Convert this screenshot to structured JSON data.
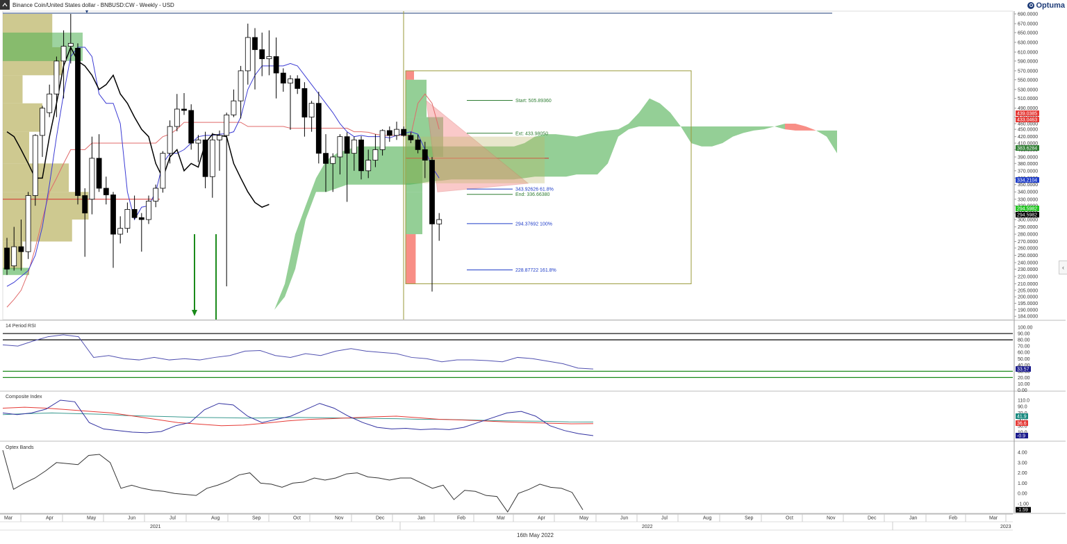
{
  "header": {
    "title": "Binance Coin/United States dollar - BNBUSD:CW - Weekly - USD",
    "logo_text": "Optuma"
  },
  "footer": {
    "date_label": "16th May 2022",
    "years": [
      "2021",
      "2022",
      "2023"
    ],
    "months": [
      "Mar",
      "Apr",
      "May",
      "Jun",
      "Jul",
      "Aug",
      "Sep",
      "Oct",
      "Nov",
      "Dec",
      "Jan",
      "Feb",
      "Mar",
      "Apr",
      "May",
      "Jun",
      "Jul",
      "Aug",
      "Sep",
      "Oct",
      "Nov",
      "Dec",
      "Jan",
      "Feb",
      "Mar"
    ]
  },
  "panels": {
    "rsi_title": "14 Period RSI",
    "composite_title": "Composite Index",
    "optex_title": "Optex Bands"
  },
  "colors": {
    "bull": "#ffffff",
    "bear": "#000000",
    "kumo_bull": "#4caf50",
    "kumo_bear": "#f44336",
    "volume_profile": "#bdb76b",
    "tenkan": "#3b3bd4",
    "kijun": "#e06a6a",
    "lagging": "#000000"
  },
  "fib_labels": {
    "start": "Start: 505.89360",
    "end": "End: 336.66380",
    "ext": "Ext: 433.98050",
    "f618": "343.92626    61.8%",
    "f100": "294.37692    100%",
    "f1618": "228.87722    161.8%"
  },
  "price_axis": {
    "ticks": [
      "690.0000",
      "670.0000",
      "650.0000",
      "630.0000",
      "610.0000",
      "590.0000",
      "570.0000",
      "550.0000",
      "530.0000",
      "510.0000",
      "490.0000",
      "470.0000",
      "460.0000",
      "450.0000",
      "420.0000",
      "410.0000",
      "400.0000",
      "390.0000",
      "380.0000",
      "370.0000",
      "360.0000",
      "350.0000",
      "340.0000",
      "330.0000",
      "320.0000",
      "310.0000",
      "300.0000",
      "290.0000",
      "280.0000",
      "270.0000",
      "260.0000",
      "250.0000",
      "240.0000",
      "230.0000",
      "220.0000",
      "210.0000",
      "205.0000",
      "200.0000",
      "195.0000",
      "190.0000",
      "184.0000"
    ],
    "badges": [
      {
        "value": "439.0385",
        "color": "#e53935"
      },
      {
        "value": "433.0463",
        "color": "#e53935"
      },
      {
        "value": "383.6284",
        "color": "#2e7d32"
      },
      {
        "value": "334.2104",
        "color": "#1e3cc8"
      },
      {
        "value": "294.5982",
        "color": "#22c322"
      },
      {
        "value": "294.5982",
        "color": "#000000"
      }
    ]
  },
  "rsi_axis": {
    "ticks": [
      "100.00",
      "90.00",
      "80.00",
      "70.00",
      "60.00",
      "50.00",
      "40.00",
      "30.00",
      "20.00",
      "10.00",
      "0.00"
    ],
    "badge": "33.57"
  },
  "composite_axis": {
    "ticks": [
      "110.0",
      "90.0",
      "70.0",
      "50.0",
      "30.0",
      "10.0"
    ],
    "badges": [
      {
        "value": "41.9",
        "color": "#1a8a80"
      },
      {
        "value": "36.6",
        "color": "#e53935"
      },
      {
        "value": "-0.9",
        "color": "#1a1a8c"
      }
    ]
  },
  "optex_axis": {
    "ticks": [
      "4.00",
      "3.00",
      "2.00",
      "1.00",
      "0.00",
      "-1.00"
    ],
    "badge": "-1.59"
  },
  "chart_data": {
    "type": "candlestick",
    "timeframe": "Weekly",
    "ylim": [
      184,
      695
    ],
    "candles": [
      {
        "o": 260,
        "h": 275,
        "l": 222,
        "c": 230
      },
      {
        "o": 235,
        "h": 290,
        "l": 228,
        "c": 262
      },
      {
        "o": 262,
        "h": 300,
        "l": 228,
        "c": 255
      },
      {
        "o": 255,
        "h": 340,
        "l": 245,
        "c": 335
      },
      {
        "o": 335,
        "h": 430,
        "l": 320,
        "c": 425
      },
      {
        "o": 425,
        "h": 495,
        "l": 390,
        "c": 490
      },
      {
        "o": 480,
        "h": 540,
        "l": 470,
        "c": 520
      },
      {
        "o": 520,
        "h": 600,
        "l": 470,
        "c": 590
      },
      {
        "o": 590,
        "h": 655,
        "l": 510,
        "c": 622
      },
      {
        "o": 622,
        "h": 690,
        "l": 585,
        "c": 628
      },
      {
        "o": 618,
        "h": 628,
        "l": 322,
        "c": 335
      },
      {
        "o": 335,
        "h": 345,
        "l": 248,
        "c": 310
      },
      {
        "o": 330,
        "h": 420,
        "l": 308,
        "c": 388
      },
      {
        "o": 388,
        "h": 430,
        "l": 340,
        "c": 345
      },
      {
        "o": 345,
        "h": 362,
        "l": 322,
        "c": 336
      },
      {
        "o": 336,
        "h": 340,
        "l": 232,
        "c": 280
      },
      {
        "o": 280,
        "h": 305,
        "l": 267,
        "c": 288
      },
      {
        "o": 288,
        "h": 325,
        "l": 282,
        "c": 315
      },
      {
        "o": 315,
        "h": 335,
        "l": 300,
        "c": 303
      },
      {
        "o": 303,
        "h": 310,
        "l": 255,
        "c": 300
      },
      {
        "o": 300,
        "h": 335,
        "l": 294,
        "c": 327
      },
      {
        "o": 327,
        "h": 350,
        "l": 318,
        "c": 345
      },
      {
        "o": 345,
        "h": 398,
        "l": 339,
        "c": 395
      },
      {
        "o": 395,
        "h": 465,
        "l": 380,
        "c": 455
      },
      {
        "o": 455,
        "h": 520,
        "l": 442,
        "c": 488
      },
      {
        "o": 488,
        "h": 522,
        "l": 475,
        "c": 485
      },
      {
        "o": 485,
        "h": 498,
        "l": 400,
        "c": 410
      },
      {
        "o": 410,
        "h": 427,
        "l": 382,
        "c": 415
      },
      {
        "o": 415,
        "h": 440,
        "l": 345,
        "c": 362
      },
      {
        "o": 362,
        "h": 435,
        "l": 332,
        "c": 415
      },
      {
        "o": 415,
        "h": 445,
        "l": 370,
        "c": 425
      },
      {
        "o": 425,
        "h": 480,
        "l": 208,
        "c": 475
      },
      {
        "o": 475,
        "h": 530,
        "l": 470,
        "c": 505
      },
      {
        "o": 505,
        "h": 580,
        "l": 468,
        "c": 570
      },
      {
        "o": 570,
        "h": 670,
        "l": 540,
        "c": 640
      },
      {
        "o": 640,
        "h": 660,
        "l": 530,
        "c": 615
      },
      {
        "o": 615,
        "h": 650,
        "l": 558,
        "c": 595
      },
      {
        "o": 595,
        "h": 655,
        "l": 560,
        "c": 600
      },
      {
        "o": 600,
        "h": 640,
        "l": 510,
        "c": 565
      },
      {
        "o": 565,
        "h": 575,
        "l": 525,
        "c": 543
      },
      {
        "o": 543,
        "h": 560,
        "l": 448,
        "c": 552
      },
      {
        "o": 552,
        "h": 560,
        "l": 520,
        "c": 532
      },
      {
        "o": 532,
        "h": 545,
        "l": 420,
        "c": 470
      },
      {
        "o": 470,
        "h": 505,
        "l": 440,
        "c": 500
      },
      {
        "o": 500,
        "h": 525,
        "l": 380,
        "c": 395
      },
      {
        "o": 395,
        "h": 430,
        "l": 340,
        "c": 380
      },
      {
        "o": 380,
        "h": 395,
        "l": 340,
        "c": 390
      },
      {
        "o": 390,
        "h": 430,
        "l": 365,
        "c": 420
      },
      {
        "o": 420,
        "h": 438,
        "l": 326,
        "c": 395
      },
      {
        "o": 395,
        "h": 420,
        "l": 370,
        "c": 415
      },
      {
        "o": 415,
        "h": 422,
        "l": 358,
        "c": 370
      },
      {
        "o": 370,
        "h": 400,
        "l": 360,
        "c": 385
      },
      {
        "o": 385,
        "h": 430,
        "l": 375,
        "c": 400
      },
      {
        "o": 400,
        "h": 450,
        "l": 392,
        "c": 445
      },
      {
        "o": 445,
        "h": 455,
        "l": 412,
        "c": 425
      },
      {
        "o": 425,
        "h": 463,
        "l": 415,
        "c": 450
      },
      {
        "o": 450,
        "h": 455,
        "l": 420,
        "c": 425
      },
      {
        "o": 425,
        "h": 438,
        "l": 410,
        "c": 415
      },
      {
        "o": 415,
        "h": 428,
        "l": 395,
        "c": 400
      },
      {
        "o": 400,
        "h": 412,
        "l": 360,
        "c": 385
      },
      {
        "o": 385,
        "h": 390,
        "l": 204,
        "c": 294
      },
      {
        "o": 294,
        "h": 310,
        "l": 271,
        "c": 300
      }
    ],
    "tenkan": [
      208,
      212,
      220,
      228,
      250,
      290,
      350,
      420,
      520,
      600,
      620,
      620,
      600,
      520,
      500,
      500,
      460,
      340,
      300,
      318,
      320,
      340,
      380,
      395,
      395,
      400,
      410,
      420,
      425,
      425,
      430,
      432,
      440,
      470,
      530,
      560,
      580,
      580,
      580,
      580,
      585,
      580,
      560,
      540,
      520,
      500,
      480,
      460,
      440,
      420,
      425,
      420,
      420,
      420,
      418,
      425,
      433,
      440,
      430,
      400,
      375,
      360
    ],
    "kijun": [
      192,
      198,
      205,
      225,
      260,
      300,
      340,
      360,
      380,
      400,
      400,
      400,
      410,
      410,
      410,
      410,
      410,
      410,
      410,
      410,
      410,
      410,
      420,
      430,
      450,
      462,
      462,
      462,
      462,
      462,
      462,
      462,
      462,
      462,
      455,
      455,
      455,
      455,
      455,
      455,
      452,
      452,
      452,
      452,
      452,
      452,
      452,
      452,
      452,
      440,
      440,
      438,
      430,
      425,
      425,
      425,
      425,
      425,
      500,
      520,
      500,
      450
    ],
    "lagging": [
      440,
      420,
      400,
      380,
      360,
      360,
      420,
      500,
      580,
      620,
      590,
      580,
      560,
      530,
      540,
      560,
      520,
      500,
      470,
      450,
      420,
      380,
      360,
      390,
      400,
      370,
      380,
      375,
      410,
      430,
      425,
      420,
      380,
      360,
      340,
      325,
      318,
      322
    ],
    "kumo": {
      "span_a": [
        184,
        184,
        184,
        186,
        188,
        190,
        210,
        280,
        320,
        360,
        385,
        395,
        400,
        405,
        405,
        405,
        405,
        405,
        405,
        405,
        405,
        405,
        405,
        405,
        405,
        405,
        405,
        405,
        405,
        410,
        420,
        430,
        430,
        425,
        420,
        430,
        440,
        445,
        450,
        460,
        480,
        510,
        500,
        480,
        455,
        455,
        455,
        455,
        455,
        455,
        455,
        455,
        455,
        455,
        450,
        445,
        445,
        445,
        445,
        445
      ],
      "span_b": [
        184,
        184,
        184,
        186,
        188,
        190,
        200,
        230,
        300,
        340,
        340,
        345,
        350,
        350,
        350,
        350,
        350,
        350,
        350,
        352,
        355,
        356,
        358,
        358,
        358,
        358,
        358,
        358,
        358,
        360,
        362,
        362,
        362,
        362,
        365,
        365,
        365,
        380,
        420,
        450,
        455,
        455,
        455,
        455,
        455,
        410,
        405,
        405,
        410,
        420,
        435,
        445,
        450,
        455,
        460,
        460,
        455,
        445,
        420,
        395
      ]
    },
    "rsi": [
      72,
      70,
      78,
      85,
      88,
      85,
      52,
      55,
      50,
      48,
      52,
      48,
      50,
      48,
      52,
      55,
      62,
      63,
      55,
      52,
      58,
      55,
      62,
      66,
      62,
      60,
      58,
      52,
      50,
      45,
      48,
      48,
      47,
      45,
      52,
      50,
      46,
      42,
      35,
      33.57
    ],
    "composite": {
      "main": [
        70,
        65,
        70,
        82,
        110,
        105,
        40,
        20,
        15,
        10,
        8,
        12,
        30,
        40,
        80,
        100,
        95,
        60,
        40,
        50,
        60,
        80,
        100,
        85,
        60,
        40,
        25,
        20,
        22,
        18,
        20,
        18,
        25,
        40,
        55,
        70,
        75,
        60,
        30,
        15,
        5,
        -0.9
      ],
      "slow": [
        85,
        88,
        85,
        80,
        75,
        70,
        60,
        50,
        40,
        35,
        30,
        32,
        38,
        45,
        50,
        52,
        55,
        58,
        60,
        55,
        50,
        48,
        45,
        42,
        40,
        38,
        36,
        36.6
      ],
      "fast": [
        65,
        68,
        70,
        68,
        66,
        62,
        60,
        58,
        56,
        55,
        54,
        55,
        56,
        55,
        54,
        53,
        52,
        50,
        50,
        48,
        46,
        45,
        44,
        42,
        41.9
      ]
    },
    "optex": [
      4.2,
      0.4,
      1.0,
      1.5,
      2.2,
      3.0,
      2.9,
      2.8,
      3.7,
      3.8,
      3.0,
      0.5,
      0.8,
      0.5,
      0.3,
      0.2,
      0.0,
      -0.1,
      -0.2,
      0.5,
      0.8,
      1.2,
      1.8,
      2.0,
      1.0,
      0.9,
      0.6,
      1.0,
      1.1,
      1.5,
      1.3,
      1.5,
      1.9,
      2.0,
      1.6,
      1.5,
      1.3,
      1.5,
      1.5,
      1.0,
      0.5,
      0.8,
      -0.6,
      0.3,
      0.2,
      -0.2,
      -0.3,
      -1.8,
      0.0,
      0.4,
      0.9,
      0.6,
      0.5,
      0.1,
      -1.59
    ]
  }
}
